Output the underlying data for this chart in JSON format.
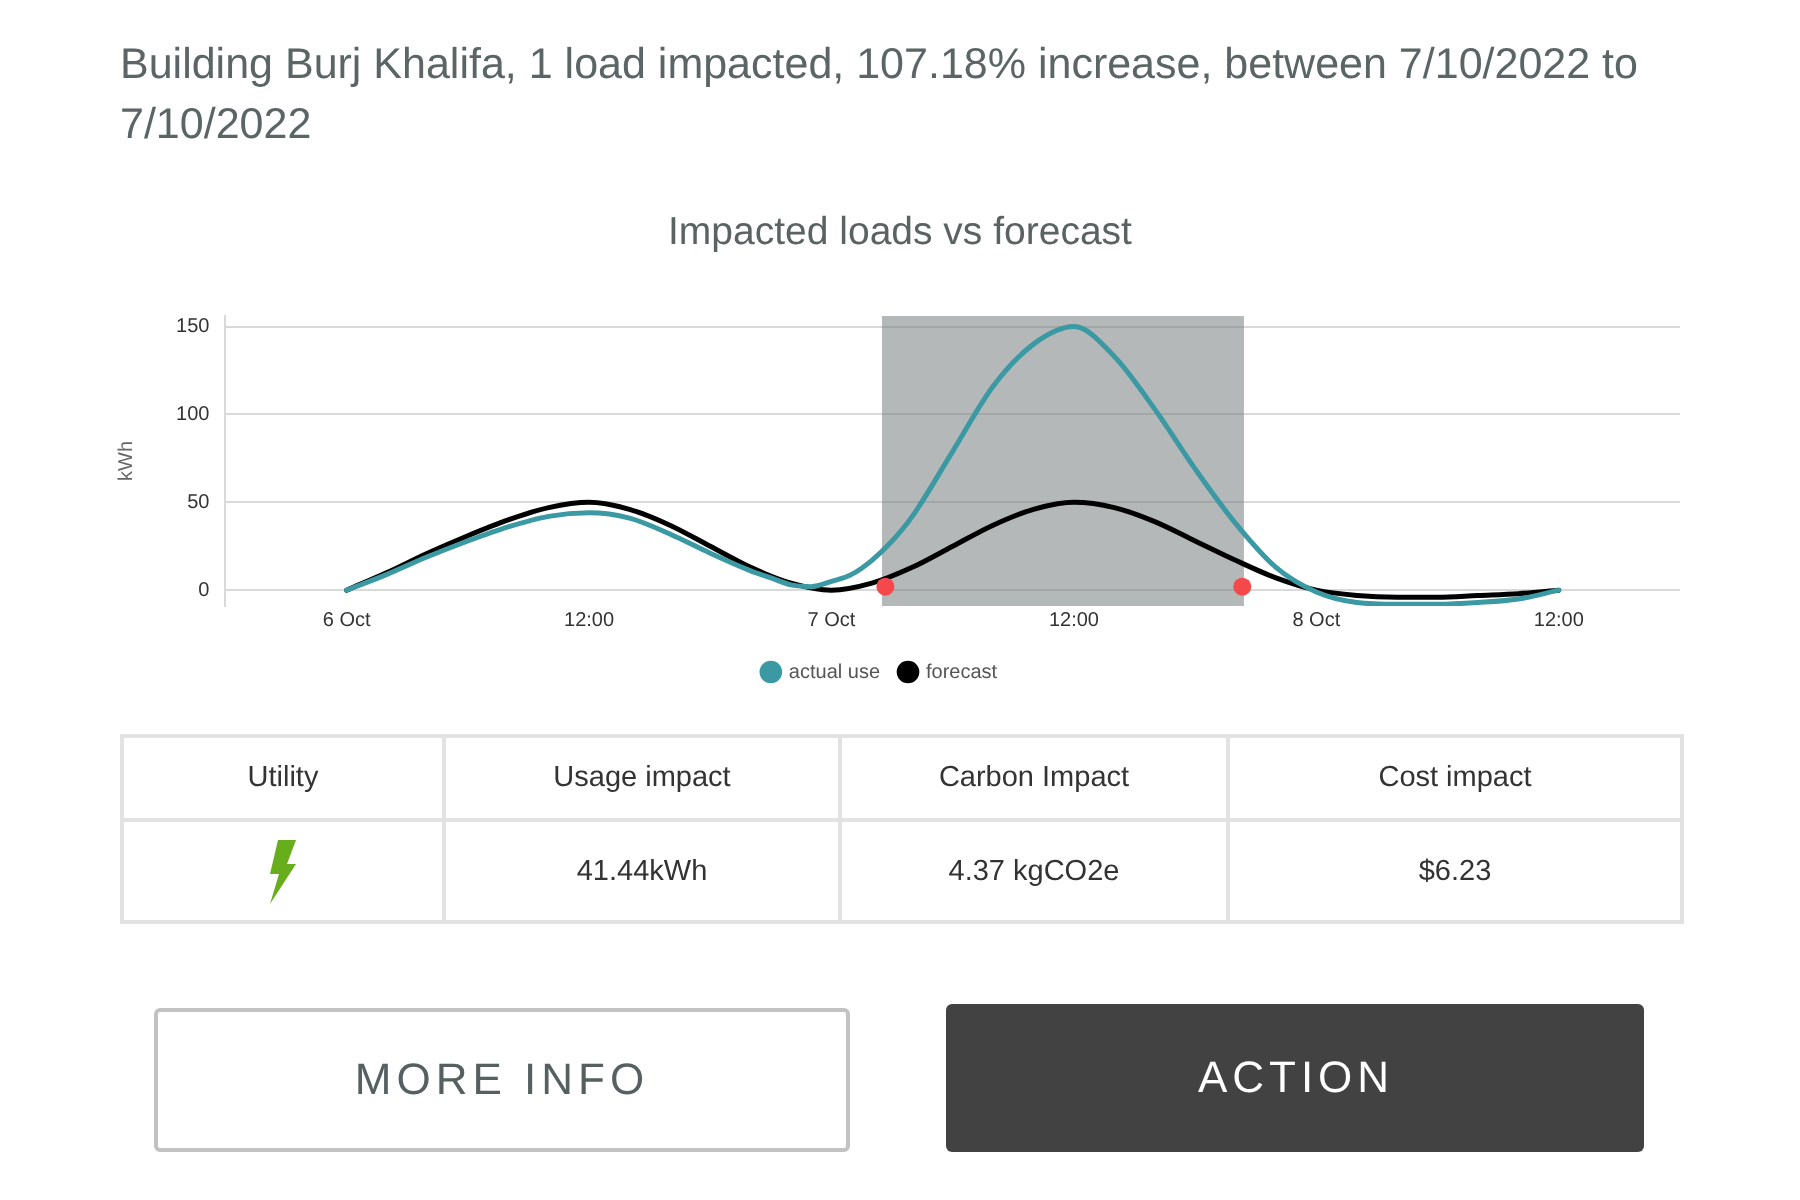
{
  "chart_data": [
    {
      "type": "other",
      "title": "Building Burj Khalifa, 1 load impacted, 107.18% increase, between 7/10/2022 to 7/10/2022"
    },
    {
      "type": "line",
      "title": "Impacted loads vs forecast",
      "ylabel": "kWh",
      "xlim": [
        "2022-10-05T18:00",
        "2022-10-08T18:00"
      ],
      "xticks": [
        {
          "value": "2022-10-06T00:00",
          "label": "6 Oct"
        },
        {
          "value": "2022-10-06T12:00",
          "label": "12:00"
        },
        {
          "value": "2022-10-07T00:00",
          "label": "7 Oct"
        },
        {
          "value": "2022-10-07T12:00",
          "label": "12:00"
        },
        {
          "value": "2022-10-08T00:00",
          "label": "8 Oct"
        },
        {
          "value": "2022-10-08T12:00",
          "label": "12:00"
        }
      ],
      "ylim": [
        -9,
        156
      ],
      "yticks": [
        0,
        50,
        100,
        150
      ],
      "grid": "y",
      "legend": "bottom",
      "marker": "none",
      "line_style": "solid",
      "bands": [
        {
          "axis": "x",
          "from": "2022-10-07T02:30",
          "to": "2022-10-07T20:25",
          "color": "#b5b8b8"
        }
      ],
      "x": [
        "2022-10-06T00:00",
        "2022-10-06T02:00",
        "2022-10-06T04:00",
        "2022-10-06T06:00",
        "2022-10-06T08:00",
        "2022-10-06T10:00",
        "2022-10-06T12:00",
        "2022-10-06T14:00",
        "2022-10-06T16:00",
        "2022-10-06T18:00",
        "2022-10-06T20:00",
        "2022-10-06T22:00",
        "2022-10-07T00:00",
        "2022-10-07T02:00",
        "2022-10-07T04:00",
        "2022-10-07T06:00",
        "2022-10-07T08:00",
        "2022-10-07T10:00",
        "2022-10-07T12:00",
        "2022-10-07T14:00",
        "2022-10-07T16:00",
        "2022-10-07T18:00",
        "2022-10-07T20:00",
        "2022-10-07T22:00",
        "2022-10-08T00:00",
        "2022-10-08T02:00",
        "2022-10-08T04:00",
        "2022-10-08T06:00",
        "2022-10-08T08:00",
        "2022-10-08T10:00",
        "2022-10-08T12:00"
      ],
      "series": [
        {
          "name": "actual use",
          "color": "#3a99a2",
          "x": [
            "2022-10-06T00:00",
            "2022-10-06T02:00",
            "2022-10-06T04:00",
            "2022-10-06T06:00",
            "2022-10-06T08:00",
            "2022-10-06T10:00",
            "2022-10-06T12:00",
            "2022-10-06T14:00",
            "2022-10-06T16:00",
            "2022-10-06T18:00",
            "2022-10-06T20:00",
            "2022-10-06T21:00",
            "2022-10-06T22:00",
            "2022-10-06T23:00",
            "2022-10-07T00:00",
            "2022-10-07T01:00",
            "2022-10-07T02:00",
            "2022-10-07T03:00",
            "2022-10-07T04:00",
            "2022-10-07T06:00",
            "2022-10-07T08:00",
            "2022-10-07T10:00",
            "2022-10-07T12:00",
            "2022-10-07T14:00",
            "2022-10-07T16:00",
            "2022-10-07T18:00",
            "2022-10-07T20:00",
            "2022-10-07T22:00",
            "2022-10-08T00:00",
            "2022-10-08T02:00",
            "2022-10-08T04:00",
            "2022-10-08T06:00",
            "2022-10-08T08:00",
            "2022-10-08T10:00",
            "2022-10-08T12:00"
          ],
          "values": [
            0,
            9,
            19,
            28,
            36,
            42,
            44,
            41,
            32,
            21,
            11,
            7,
            3,
            2,
            5,
            9,
            17,
            28,
            42,
            79,
            116,
            140,
            150,
            133,
            103,
            69,
            38,
            13,
            -1,
            -7,
            -8,
            -8,
            -7,
            -5,
            0
          ]
        },
        {
          "name": "forecast",
          "color": "#000000",
          "values": [
            0,
            10,
            21,
            31,
            40,
            47,
            50,
            46,
            37,
            25,
            13,
            4,
            0,
            4,
            13,
            25,
            37,
            46,
            50,
            47,
            39,
            28,
            17,
            7,
            0,
            -3,
            -4,
            -4,
            -3,
            -2,
            0
          ]
        },
        {
          "type": "scatter",
          "color": "#f5484a",
          "marker": "circle",
          "x": [
            "2022-10-07T02:40",
            "2022-10-07T20:20"
          ],
          "values": [
            2,
            2
          ]
        }
      ]
    },
    {
      "type": "other",
      "annotations": [
        "Utility",
        "Usage impact",
        "Carbon Impact",
        "Cost impact",
        "41.44kWh",
        "4.37 kgCO2e",
        "$6.23",
        "MORE INFO",
        "ACTION"
      ]
    }
  ]
}
